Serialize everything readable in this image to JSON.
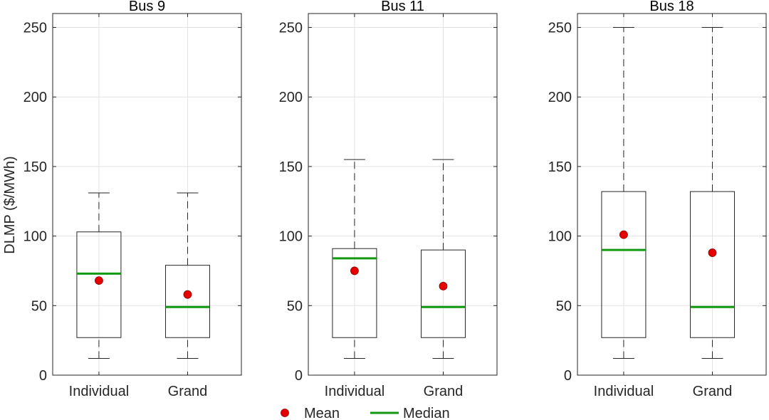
{
  "chart_data": {
    "type": "box",
    "ylabel": "DLMP ($/MWh)",
    "ylim": [
      0,
      260
    ],
    "yticks": [
      0,
      50,
      100,
      150,
      200,
      250
    ],
    "categories": [
      "Individual",
      "Grand"
    ],
    "grid": true,
    "legend": {
      "placement": "bottom-center",
      "entries": [
        {
          "label": "Mean",
          "marker": "circle",
          "color": "#e60000"
        },
        {
          "label": "Median",
          "marker": "line",
          "color": "#119911"
        }
      ]
    },
    "colors": {
      "box": "#262626",
      "whisker": "#262626",
      "grid": "#e3e3e3",
      "mean": "#e60000",
      "median": "#119911"
    },
    "panels": [
      {
        "title": "Bus 9",
        "boxes": [
          {
            "category": "Individual",
            "min": 12,
            "q1": 27,
            "median": 73,
            "q3": 103,
            "max": 131,
            "mean": 68
          },
          {
            "category": "Grand",
            "min": 12,
            "q1": 27,
            "median": 49,
            "q3": 79,
            "max": 131,
            "mean": 58
          }
        ]
      },
      {
        "title": "Bus 11",
        "boxes": [
          {
            "category": "Individual",
            "min": 12,
            "q1": 27,
            "median": 84,
            "q3": 91,
            "max": 155,
            "mean": 75
          },
          {
            "category": "Grand",
            "min": 12,
            "q1": 27,
            "median": 49,
            "q3": 90,
            "max": 155,
            "mean": 64
          }
        ]
      },
      {
        "title": "Bus 18",
        "boxes": [
          {
            "category": "Individual",
            "min": 12,
            "q1": 27,
            "median": 90,
            "q3": 132,
            "max": 250,
            "mean": 101
          },
          {
            "category": "Grand",
            "min": 12,
            "q1": 27,
            "median": 49,
            "q3": 132,
            "max": 250,
            "mean": 88
          }
        ]
      }
    ]
  }
}
